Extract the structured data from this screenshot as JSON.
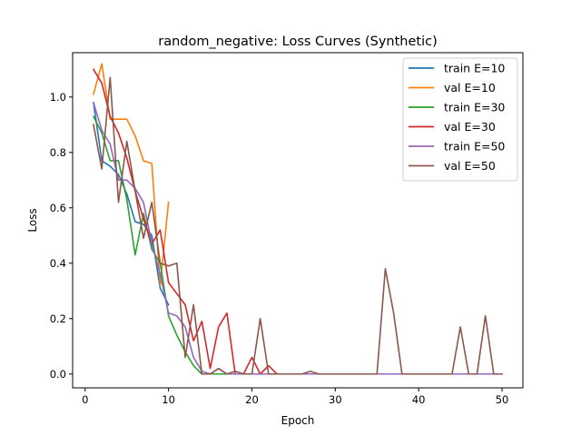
{
  "chart_data": {
    "type": "line",
    "title": "random_negative: Loss Curves (Synthetic)",
    "xlabel": "Epoch",
    "ylabel": "Loss",
    "xlim": [
      -1.5,
      52.5
    ],
    "ylim": [
      -0.05,
      1.16
    ],
    "xticks": [
      0,
      10,
      20,
      30,
      40,
      50
    ],
    "yticks": [
      0.0,
      0.2,
      0.4,
      0.6,
      0.8,
      1.0
    ],
    "xtick_labels": [
      "0",
      "10",
      "20",
      "30",
      "40",
      "50"
    ],
    "ytick_labels": [
      "0.0",
      "0.2",
      "0.4",
      "0.6",
      "0.8",
      "1.0"
    ],
    "grid": false,
    "legend_position": "top-right",
    "series": [
      {
        "name": "train E=10",
        "color": "#1f77b4",
        "x": [
          1,
          2,
          3,
          4,
          5,
          6,
          7,
          8,
          9,
          10
        ],
        "y": [
          0.98,
          0.77,
          0.75,
          0.72,
          0.65,
          0.55,
          0.54,
          0.5,
          0.31,
          0.25
        ]
      },
      {
        "name": "val E=10",
        "color": "#ff7f0e",
        "x": [
          1,
          2,
          3,
          4,
          5,
          6,
          7,
          8,
          9,
          10
        ],
        "y": [
          1.01,
          1.12,
          0.92,
          0.92,
          0.92,
          0.86,
          0.77,
          0.76,
          0.32,
          0.62
        ]
      },
      {
        "name": "train E=30",
        "color": "#2ca02c",
        "x": [
          1,
          2,
          3,
          4,
          5,
          6,
          7,
          8,
          9,
          10,
          11,
          12,
          13,
          14,
          15,
          16,
          17,
          18,
          19,
          20,
          21,
          22,
          23,
          24,
          25,
          26,
          27,
          28,
          29,
          30
        ],
        "y": [
          0.93,
          0.87,
          0.77,
          0.77,
          0.63,
          0.43,
          0.58,
          0.45,
          0.4,
          0.21,
          0.14,
          0.08,
          0.03,
          0.0,
          0.0,
          0.0,
          0.0,
          0.0,
          0.0,
          0.0,
          0.0,
          0.0,
          0.0,
          0.0,
          0.0,
          0.0,
          0.0,
          0.0,
          0.0,
          0.0
        ]
      },
      {
        "name": "val E=30",
        "color": "#d62728",
        "x": [
          1,
          2,
          3,
          4,
          5,
          6,
          7,
          8,
          9,
          10,
          11,
          12,
          13,
          14,
          15,
          16,
          17,
          18,
          19,
          20,
          21,
          22,
          23,
          24,
          25,
          26,
          27,
          28,
          29,
          30
        ],
        "y": [
          1.1,
          1.05,
          0.93,
          0.87,
          0.78,
          0.66,
          0.56,
          0.47,
          0.52,
          0.33,
          0.29,
          0.25,
          0.12,
          0.19,
          0.02,
          0.17,
          0.22,
          0.0,
          0.0,
          0.06,
          0.0,
          0.03,
          0.0,
          0.0,
          0.0,
          0.0,
          0.0,
          0.0,
          0.0,
          0.0
        ]
      },
      {
        "name": "train E=50",
        "color": "#9467bd",
        "x": [
          1,
          2,
          3,
          4,
          5,
          6,
          7,
          8,
          9,
          10,
          11,
          12,
          13,
          14,
          15,
          16,
          17,
          18,
          19,
          20,
          21,
          22,
          23,
          24,
          25,
          26,
          27,
          28,
          29,
          30,
          31,
          32,
          33,
          34,
          35,
          36,
          37,
          38,
          39,
          40,
          41,
          42,
          43,
          44,
          45,
          46,
          47,
          48,
          49,
          50
        ],
        "y": [
          0.98,
          0.88,
          0.83,
          0.7,
          0.7,
          0.67,
          0.62,
          0.47,
          0.36,
          0.22,
          0.21,
          0.17,
          0.06,
          0.01,
          0.0,
          0.02,
          0.0,
          0.0,
          0.0,
          0.0,
          0.0,
          0.0,
          0.0,
          0.0,
          0.0,
          0.0,
          0.0,
          0.0,
          0.0,
          0.0,
          0.0,
          0.0,
          0.0,
          0.0,
          0.0,
          0.0,
          0.0,
          0.0,
          0.0,
          0.0,
          0.0,
          0.0,
          0.0,
          0.0,
          0.0,
          0.0,
          0.0,
          0.0,
          0.0,
          0.0
        ]
      },
      {
        "name": "val E=50",
        "color": "#8c564b",
        "x": [
          1,
          2,
          3,
          4,
          5,
          6,
          7,
          8,
          9,
          10,
          11,
          12,
          13,
          14,
          15,
          16,
          17,
          18,
          19,
          20,
          21,
          22,
          23,
          24,
          25,
          26,
          27,
          28,
          29,
          30,
          31,
          32,
          33,
          34,
          35,
          36,
          37,
          38,
          39,
          40,
          41,
          42,
          43,
          44,
          45,
          46,
          47,
          48,
          49,
          50
        ],
        "y": [
          0.9,
          0.74,
          1.07,
          0.62,
          0.84,
          0.66,
          0.49,
          0.62,
          0.4,
          0.39,
          0.4,
          0.06,
          0.25,
          0.0,
          0.0,
          0.02,
          0.0,
          0.01,
          0.0,
          0.0,
          0.2,
          0.0,
          0.0,
          0.0,
          0.0,
          0.0,
          0.01,
          0.0,
          0.0,
          0.0,
          0.0,
          0.0,
          0.0,
          0.0,
          0.0,
          0.38,
          0.22,
          0.0,
          0.0,
          0.0,
          0.0,
          0.0,
          0.0,
          0.0,
          0.17,
          0.0,
          0.0,
          0.21,
          0.0,
          0.0
        ]
      }
    ]
  }
}
